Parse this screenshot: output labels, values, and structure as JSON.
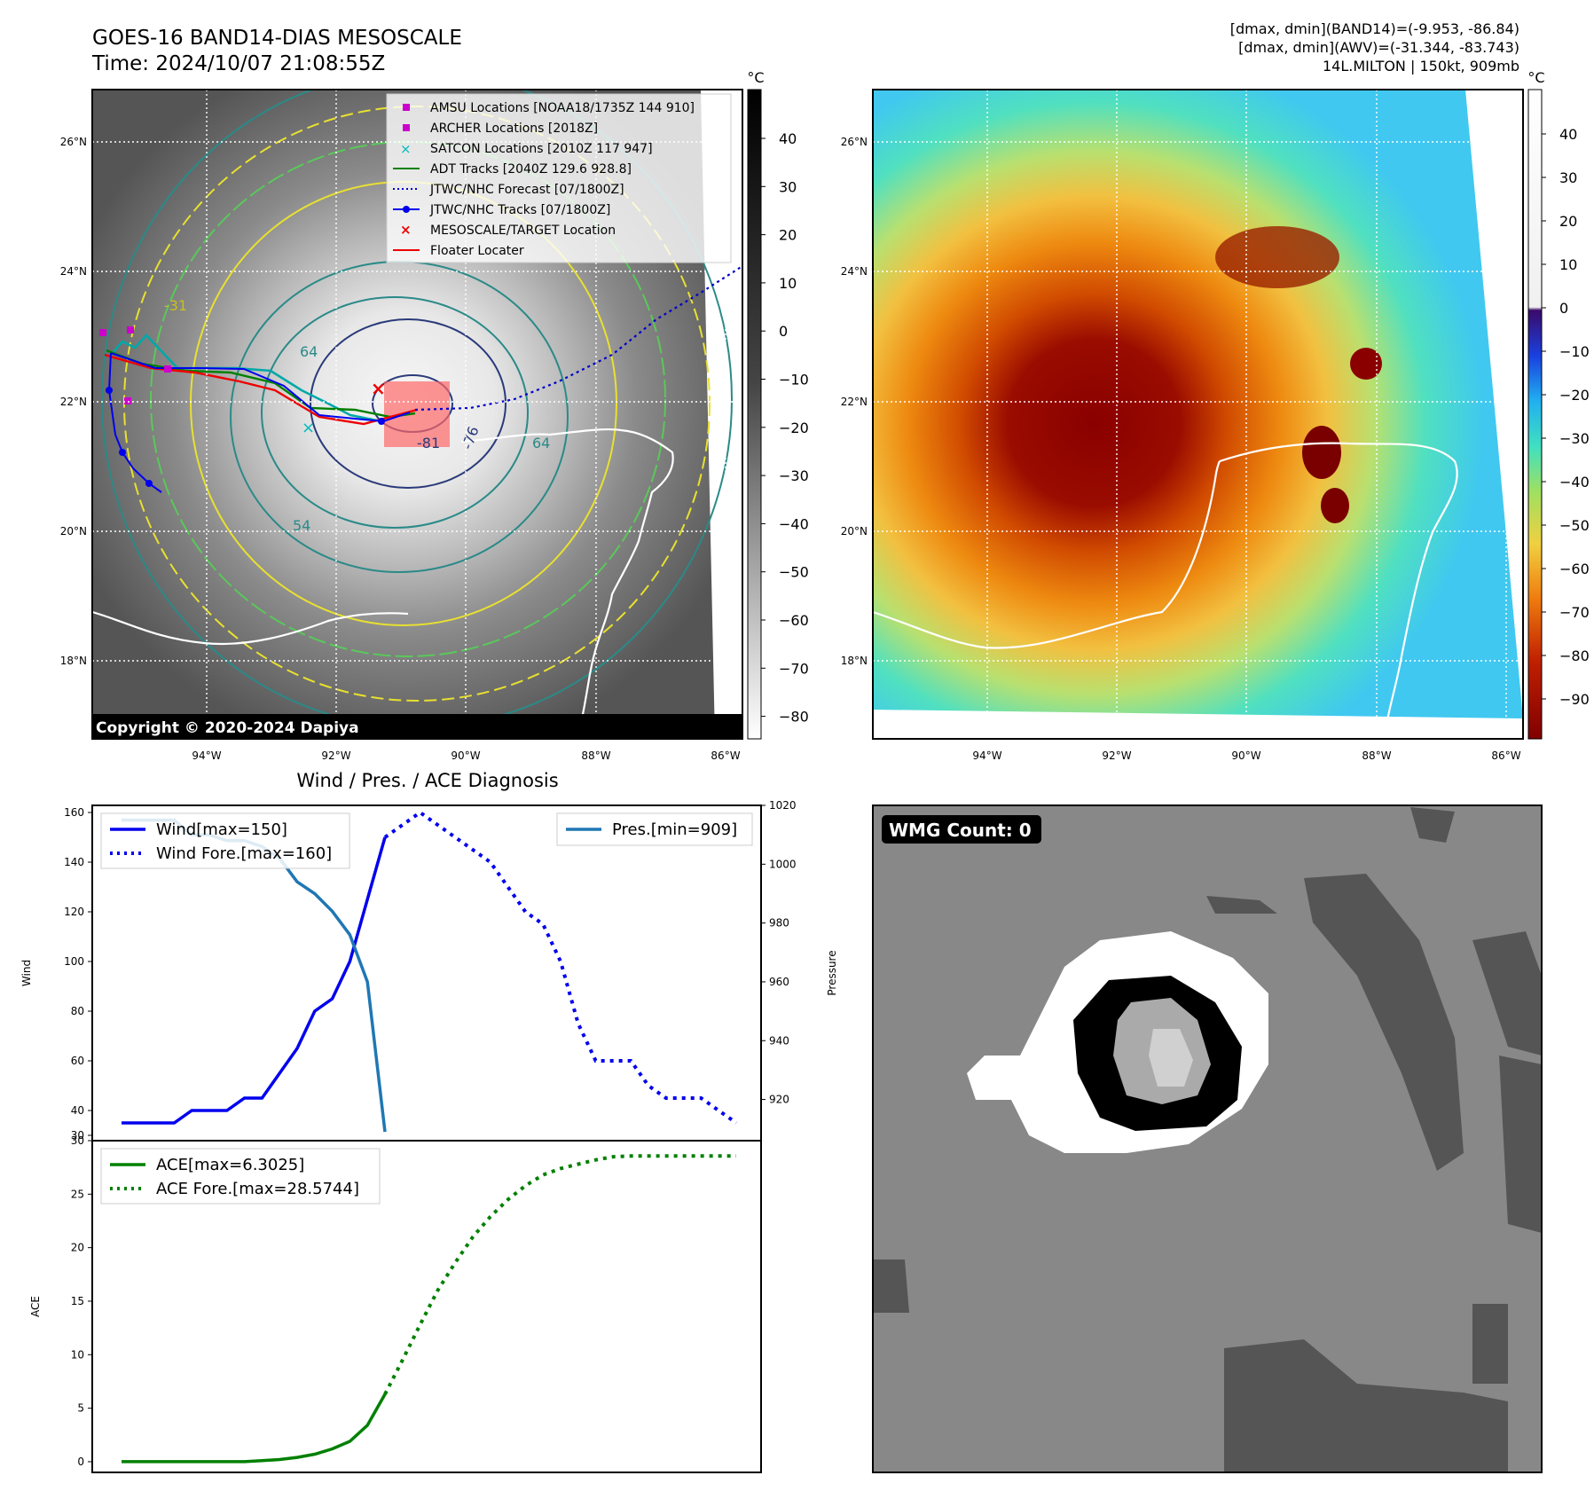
{
  "header": {
    "title_line1": "GOES-16 BAND14-DIAS MESOSCALE",
    "title_line2": "Time: 2024/10/07 21:08:55Z",
    "info_line1": "[dmax, dmin](BAND14)=(-9.953, -86.84)",
    "info_line2": "[dmax, dmin](AWV)=(-31.344, -83.743)",
    "info_line3": "14L.MILTON | 150kt, 909mb"
  },
  "map_panel": {
    "lat_labels": [
      "26°N",
      "24°N",
      "22°N",
      "20°N",
      "18°N"
    ],
    "lon_labels": [
      "94°W",
      "92°W",
      "90°W",
      "88°W",
      "86°W"
    ],
    "copyright": "Copyright © 2020-2024 Dapiya",
    "contour_labels": [
      "-31",
      "64",
      "-81",
      "-76",
      "54",
      "64"
    ],
    "legend": [
      {
        "label": "AMSU Locations [NOAA18/1735Z 144 910]",
        "color": "#cc00cc",
        "marker": "square"
      },
      {
        "label": "ARCHER Locations [2018Z]",
        "color": "#cc00cc",
        "marker": "square"
      },
      {
        "label": "SATCON Locations [2010Z 117 947]",
        "color": "#00bbbb",
        "marker": "x"
      },
      {
        "label": "ADT Tracks [2040Z 129.6 928.8]",
        "color": "#008000",
        "marker": "line"
      },
      {
        "label": "JTWC/NHC Forecast [07/1800Z]",
        "color": "#0000cc",
        "marker": "dotted"
      },
      {
        "label": "JTWC/NHC Tracks [07/1800Z]",
        "color": "#0000ee",
        "marker": "line-dot"
      },
      {
        "label": "MESOSCALE/TARGET Location",
        "color": "#ee0000",
        "marker": "x"
      },
      {
        "label": "Floater Locater",
        "color": "#ee0000",
        "marker": "line"
      }
    ]
  },
  "colorbar_gray": {
    "unit": "°C",
    "ticks": [
      "40",
      "30",
      "20",
      "10",
      "0",
      "−10",
      "−20",
      "−30",
      "−40",
      "−50",
      "−60",
      "−70",
      "−80"
    ]
  },
  "colorbar_awv": {
    "unit": "°C",
    "ticks": [
      "40",
      "30",
      "20",
      "10",
      "0",
      "−10",
      "−20",
      "−30",
      "−40",
      "−50",
      "−60",
      "−70",
      "−80",
      "−90"
    ]
  },
  "wmg_panel": {
    "label": "WMG Count: 0"
  },
  "chart_data": [
    {
      "type": "line",
      "title": "Wind / Pres. / ACE Diagnosis",
      "ylabel": "Wind",
      "y2label": "Pressure",
      "ylim": [
        30,
        165
      ],
      "y2lim": [
        906,
        1020
      ],
      "yticks": [
        "160",
        "140",
        "120",
        "100",
        "80",
        "60",
        "40",
        "30"
      ],
      "y2ticks": [
        "1020",
        "1000",
        "980",
        "960",
        "940",
        "920"
      ],
      "series": [
        {
          "name": "Wind[max=150]",
          "style": "solid",
          "color": "#0000ee",
          "x": [
            0,
            1,
            2,
            3,
            4,
            5,
            6,
            7,
            8,
            9,
            10,
            11,
            12,
            13,
            14,
            15
          ],
          "y": [
            35,
            35,
            35,
            35,
            40,
            40,
            40,
            45,
            45,
            55,
            65,
            80,
            85,
            100,
            125,
            150
          ]
        },
        {
          "name": "Wind Fore.[max=160]",
          "style": "dotted",
          "color": "#0000ee",
          "x": [
            15,
            16,
            17,
            18,
            19,
            20,
            21,
            22,
            23,
            24,
            25,
            26,
            27,
            28,
            29,
            30,
            31,
            32,
            33,
            34,
            35
          ],
          "y": [
            150,
            155,
            160,
            155,
            150,
            145,
            140,
            130,
            120,
            115,
            100,
            75,
            60,
            60,
            60,
            50,
            45,
            45,
            45,
            40,
            35
          ]
        },
        {
          "name": "Pres.[min=909]",
          "style": "solid",
          "color": "#1f77b4",
          "axis": "y2",
          "x": [
            0,
            1,
            2,
            3,
            4,
            5,
            6,
            7,
            8,
            9,
            10,
            11,
            12,
            13,
            14,
            15
          ],
          "y": [
            1015,
            1015,
            1015,
            1015,
            1010,
            1010,
            1008,
            1008,
            1006,
            1002,
            994,
            990,
            984,
            976,
            960,
            909
          ]
        }
      ]
    },
    {
      "type": "line",
      "ylabel": "ACE",
      "ylim": [
        -1,
        30
      ],
      "yticks": [
        "30",
        "25",
        "20",
        "15",
        "10",
        "5",
        "0"
      ],
      "series": [
        {
          "name": "ACE[max=6.3025]",
          "style": "solid",
          "color": "#008000",
          "x": [
            0,
            1,
            2,
            3,
            4,
            5,
            6,
            7,
            8,
            9,
            10,
            11,
            12,
            13,
            14,
            15
          ],
          "y": [
            0,
            0,
            0,
            0,
            0,
            0,
            0,
            0,
            0.1,
            0.2,
            0.4,
            0.7,
            1.2,
            1.9,
            3.4,
            6.3
          ]
        },
        {
          "name": "ACE Fore.[max=28.5744]",
          "style": "dotted",
          "color": "#008000",
          "x": [
            15,
            16,
            17,
            18,
            19,
            20,
            21,
            22,
            23,
            24,
            25,
            26,
            27,
            28,
            29,
            30,
            31,
            32,
            33,
            34,
            35
          ],
          "y": [
            6.3,
            9.5,
            12.8,
            16.0,
            18.6,
            21.0,
            22.9,
            24.5,
            25.8,
            26.8,
            27.4,
            27.8,
            28.2,
            28.5,
            28.57,
            28.57,
            28.57,
            28.57,
            28.57,
            28.57,
            28.57
          ]
        }
      ]
    }
  ]
}
